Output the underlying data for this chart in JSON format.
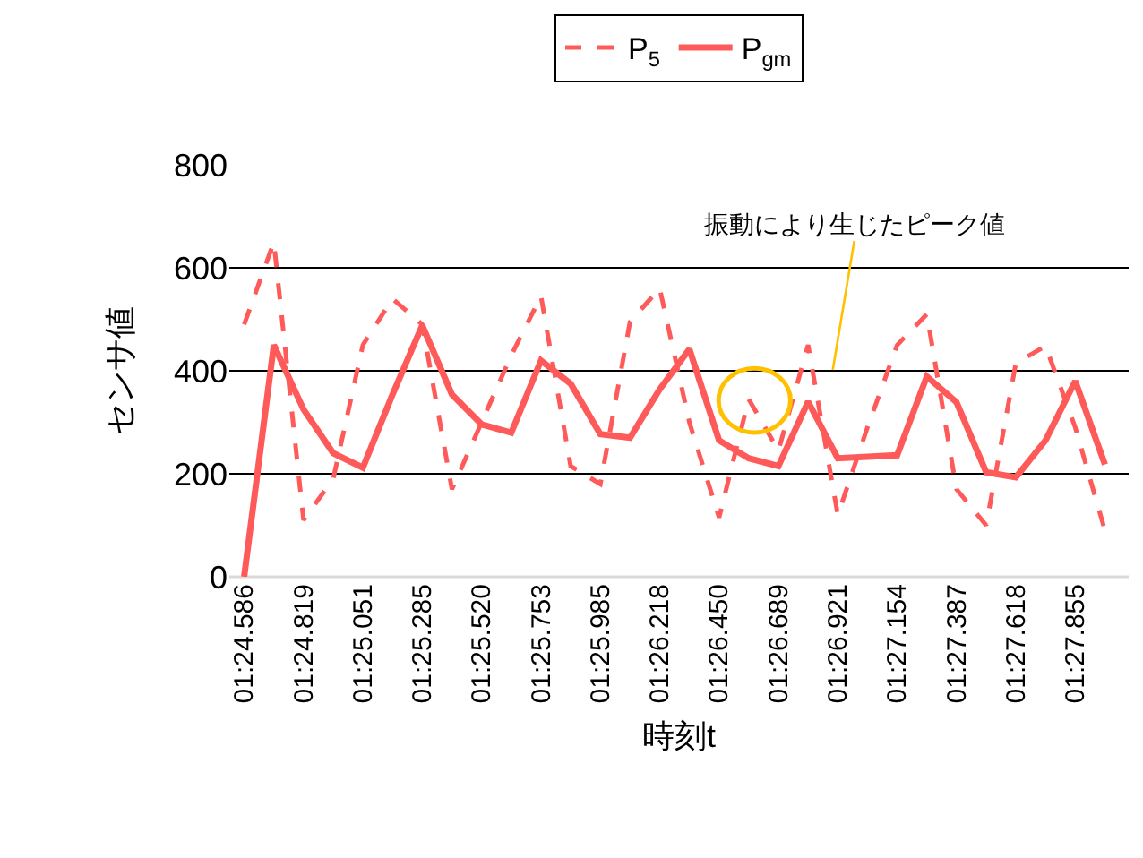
{
  "chart_data": {
    "type": "line",
    "xlabel": "時刻t",
    "ylabel": "センサ値",
    "categories": [
      "01:24.586",
      null,
      "01:24.819",
      null,
      "01:25.051",
      null,
      "01:25.285",
      null,
      "01:25.520",
      null,
      "01:25.753",
      null,
      "01:25.985",
      null,
      "01:26.218",
      null,
      "01:26.450",
      null,
      "01:26.689",
      null,
      "01:26.921",
      null,
      "01:27.154",
      null,
      "01:27.387",
      null,
      "01:27.618",
      null,
      "01:27.855",
      null
    ],
    "series": [
      {
        "name": "P$_{5}$",
        "color": "#ff5a5a",
        "line_style": "dashed",
        "values": [
          490,
          650,
          110,
          190,
          450,
          540,
          490,
          170,
          300,
          430,
          545,
          215,
          180,
          495,
          560,
          300,
          115,
          345,
          245,
          450,
          120,
          290,
          450,
          510,
          170,
          100,
          415,
          448,
          290,
          90
        ]
      },
      {
        "name": "P$_{gm}$",
        "color": "#ff5a5a",
        "line_style": "solid",
        "values": [
          0,
          450,
          325,
          240,
          212,
          354,
          488,
          354,
          296,
          280,
          420,
          375,
          277,
          270,
          364,
          442,
          265,
          230,
          215,
          340,
          230,
          233,
          236,
          389,
          339,
          203,
          193,
          265,
          380,
          218
        ]
      }
    ],
    "ylim": [
      0,
      800
    ],
    "yticks": [
      0,
      200,
      400,
      600,
      800
    ],
    "grid": "y",
    "legend": "top",
    "marker": "none",
    "annotations": [
      "振動により生じたピーク値"
    ]
  }
}
